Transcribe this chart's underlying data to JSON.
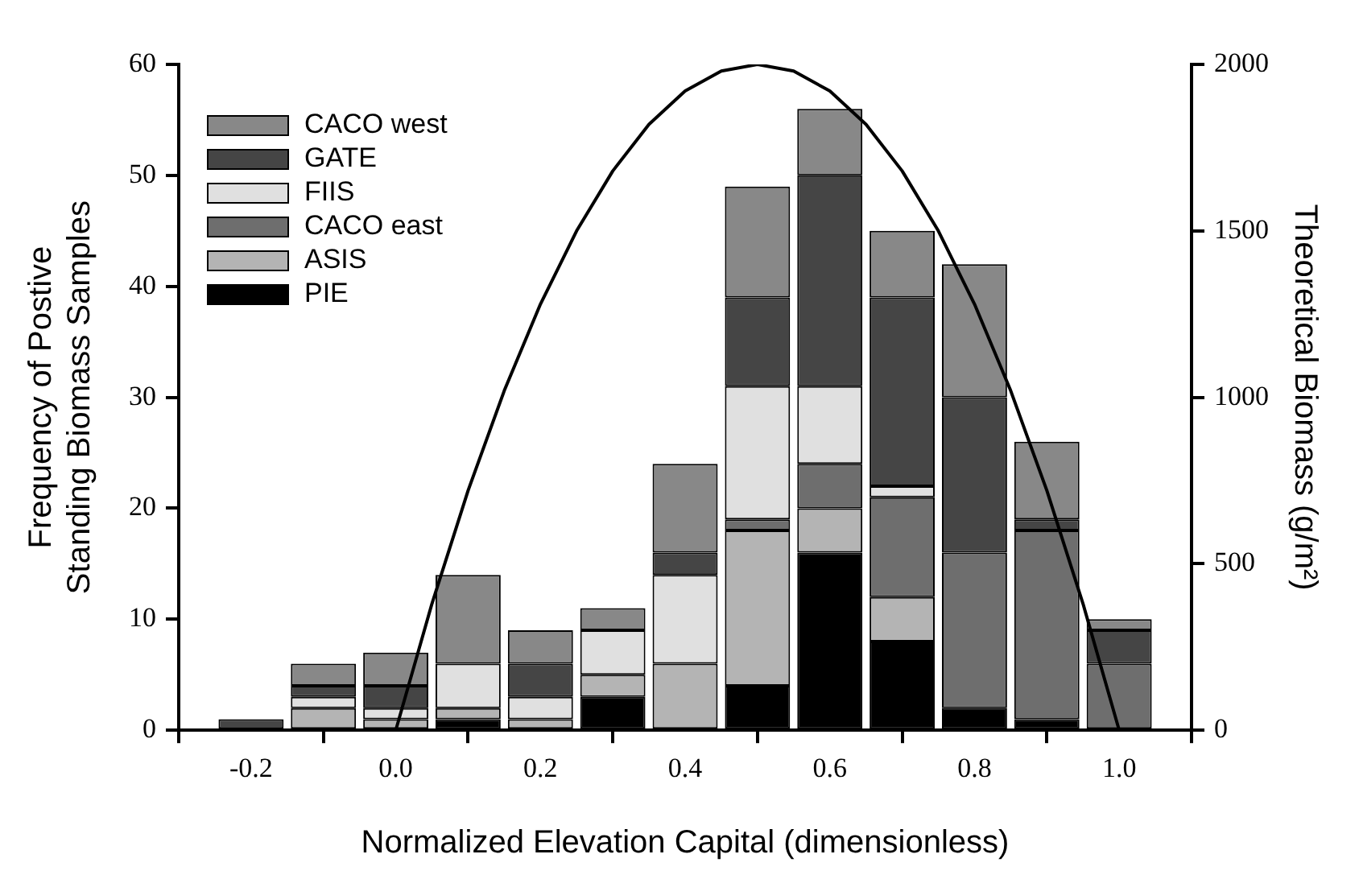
{
  "chart_data": {
    "type": "bar",
    "stacked": true,
    "xlabel": "Normalized Elevation Capital (dimensionless)",
    "ylabel": "Frequency of Postive Standing Biomass Samples",
    "y2label": "Theoretical Biomass (g/m²)",
    "x": [
      -0.2,
      -0.1,
      0.0,
      0.1,
      0.2,
      0.3,
      0.4,
      0.5,
      0.6,
      0.7,
      0.8,
      0.9,
      1.0
    ],
    "xlim": [
      -0.3,
      1.1
    ],
    "xticks": [
      {
        "value": -0.2,
        "label": "-0.2"
      },
      {
        "value": 0,
        "label": "0.0"
      },
      {
        "value": 0.2,
        "label": "0.2"
      },
      {
        "value": 0.4,
        "label": "0.4"
      },
      {
        "value": 0.6,
        "label": "0.6"
      },
      {
        "value": 0.8,
        "label": "0.8"
      },
      {
        "value": 1,
        "label": "1.0"
      }
    ],
    "ylim": [
      0,
      60
    ],
    "yticks": [
      0,
      10,
      20,
      30,
      40,
      50,
      60
    ],
    "y2lim": [
      0,
      2000
    ],
    "y2ticks": [
      0,
      500,
      1000,
      1500,
      2000
    ],
    "grid": false,
    "legend": "top left",
    "series": [
      {
        "name": "PIE",
        "color": "#000000",
        "values": [
          0,
          0,
          0,
          1,
          0,
          3,
          0,
          4,
          16,
          8,
          2,
          1,
          0
        ]
      },
      {
        "name": "ASIS",
        "color": "#b4b4b4",
        "values": [
          0,
          2,
          1,
          1,
          1,
          2,
          6,
          14,
          4,
          4,
          0,
          0,
          0
        ]
      },
      {
        "name": "CACO east",
        "color": "#6e6e6e",
        "values": [
          0,
          0,
          0,
          0,
          0,
          0,
          0,
          1,
          4,
          9,
          14,
          17,
          6
        ]
      },
      {
        "name": "FIIS",
        "color": "#e0e0e0",
        "values": [
          0,
          1,
          1,
          4,
          2,
          4,
          8,
          12,
          7,
          1,
          0,
          0,
          0
        ]
      },
      {
        "name": "GATE",
        "color": "#454545",
        "values": [
          1,
          1,
          2,
          0,
          3,
          0,
          2,
          8,
          19,
          17,
          14,
          1,
          3
        ]
      },
      {
        "name": "CACO west",
        "color": "#888888",
        "values": [
          0,
          2,
          3,
          8,
          3,
          2,
          8,
          10,
          6,
          6,
          12,
          7,
          1
        ]
      },
      {
        "type": "line",
        "axis": "y2",
        "color": "#000000",
        "marker": "none",
        "x": [
          0,
          0.05,
          0.1,
          0.15,
          0.2,
          0.25,
          0.3,
          0.35,
          0.4,
          0.45,
          0.5,
          0.55,
          0.6,
          0.65,
          0.7,
          0.75,
          0.8,
          0.85,
          0.9,
          0.95,
          1.0
        ],
        "values": [
          0,
          380,
          720,
          1020,
          1280,
          1500,
          1680,
          1820,
          1920,
          1980,
          2000,
          1980,
          1920,
          1820,
          1680,
          1500,
          1280,
          1020,
          720,
          380,
          0
        ]
      }
    ]
  }
}
